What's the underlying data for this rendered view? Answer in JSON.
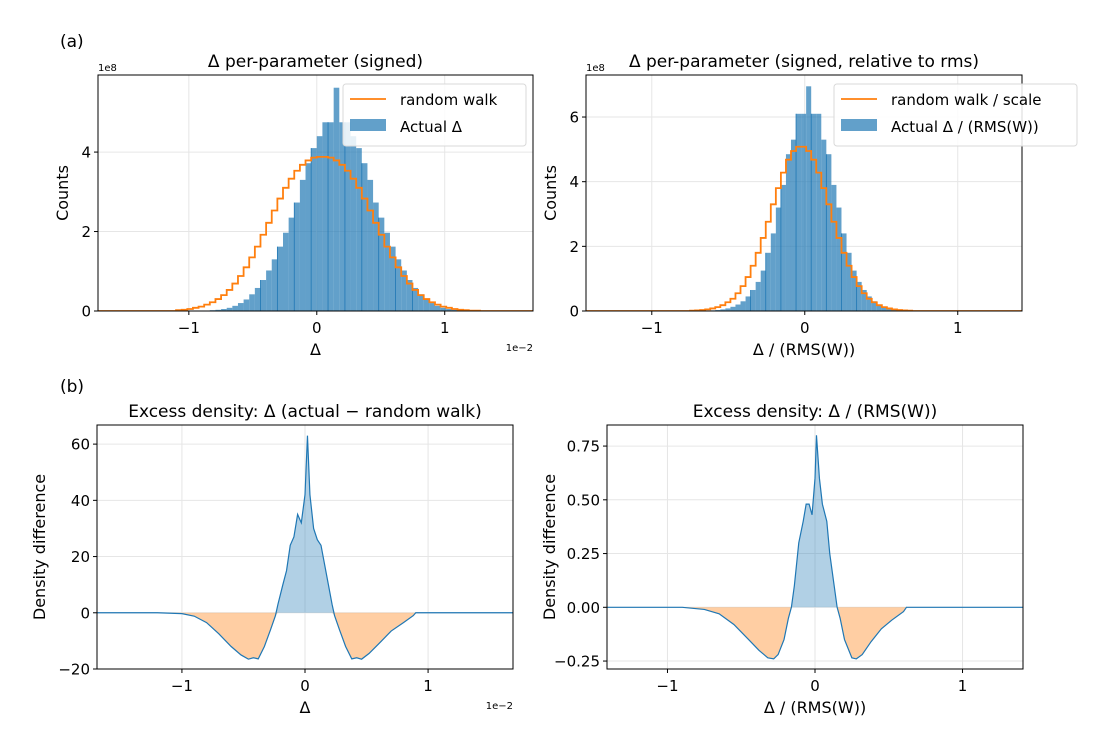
{
  "panel_labels": [
    "(a)",
    "(b)"
  ],
  "chart_data": [
    {
      "type": "bar",
      "id": "hist-delta",
      "title": "Δ per-parameter (signed)",
      "xlabel": "Δ",
      "ylabel": "Counts",
      "x_offset_label": "1e−2",
      "y_offset_label": "1e8",
      "xlim": [
        -1.71,
        1.69
      ],
      "ylim": [
        0,
        5.94
      ],
      "xticks": [
        -1,
        0,
        1
      ],
      "xtick_labels": [
        "−1",
        "0",
        "1"
      ],
      "yticks": [
        0,
        2,
        4
      ],
      "ytick_labels": [
        "0",
        "2",
        "4"
      ],
      "grid": true,
      "legend": {
        "placement": "top-right",
        "entries": [
          "random walk",
          "Actual Δ"
        ]
      },
      "bin_width": 0.044,
      "bin_start": -1.1,
      "series": [
        {
          "name": "Actual Δ",
          "kind": "bars",
          "color": "#1f77b4",
          "values": [
            0,
            0,
            0,
            0,
            0,
            0.01,
            0.02,
            0.03,
            0.05,
            0.08,
            0.13,
            0.2,
            0.29,
            0.42,
            0.58,
            0.78,
            1.02,
            1.3,
            1.62,
            1.97,
            2.35,
            2.73,
            3.3,
            3.72,
            4.1,
            4.4,
            4.75,
            4.75,
            5.62,
            4.75,
            4.75,
            4.4,
            4.1,
            3.72,
            3.3,
            2.73,
            2.35,
            1.97,
            1.62,
            1.3,
            1.02,
            0.78,
            0.58,
            0.42,
            0.29,
            0.2,
            0.13,
            0.08,
            0.05,
            0.03,
            0.02,
            0.01,
            0,
            0,
            0
          ]
        },
        {
          "name": "random walk",
          "kind": "step",
          "color": "#ff7f0e",
          "values": [
            0.02,
            0.03,
            0.05,
            0.08,
            0.11,
            0.16,
            0.22,
            0.3,
            0.4,
            0.53,
            0.69,
            0.88,
            1.1,
            1.35,
            1.62,
            1.92,
            2.22,
            2.53,
            2.83,
            3.1,
            3.33,
            3.53,
            3.68,
            3.79,
            3.86,
            3.88,
            3.88,
            3.86,
            3.79,
            3.68,
            3.53,
            3.33,
            3.1,
            2.83,
            2.53,
            2.22,
            1.92,
            1.62,
            1.35,
            1.1,
            0.88,
            0.69,
            0.53,
            0.4,
            0.3,
            0.22,
            0.16,
            0.11,
            0.08,
            0.05,
            0.03,
            0.02,
            0.01,
            0.01,
            0
          ]
        }
      ]
    },
    {
      "type": "bar",
      "id": "hist-delta-rel",
      "title": "Δ per-parameter (signed, relative to rms)",
      "xlabel": "Δ / (RMS(W))",
      "ylabel": "Counts",
      "y_offset_label": "1e8",
      "xlim": [
        -1.43,
        1.42
      ],
      "ylim": [
        0,
        7.3
      ],
      "xticks": [
        -1,
        0,
        1
      ],
      "xtick_labels": [
        "−1",
        "0",
        "1"
      ],
      "yticks": [
        0,
        2,
        4,
        6
      ],
      "ytick_labels": [
        "0",
        "2",
        "4",
        "6"
      ],
      "grid": true,
      "legend": {
        "placement": "top-right",
        "entries": [
          "random walk / scale",
          "Actual Δ / (RMS(W))"
        ]
      },
      "bin_width": 0.033,
      "bin_start": -0.75,
      "series": [
        {
          "name": "Actual Δ / (RMS(W))",
          "kind": "bars",
          "color": "#1f77b4",
          "values": [
            0,
            0,
            0,
            0.01,
            0.02,
            0.03,
            0.05,
            0.08,
            0.13,
            0.2,
            0.3,
            0.45,
            0.65,
            0.9,
            1.25,
            1.8,
            2.4,
            3.2,
            3.9,
            4.85,
            5.3,
            6.1,
            6.1,
            6.95,
            6.1,
            6.1,
            5.3,
            4.85,
            3.9,
            3.2,
            2.4,
            1.8,
            1.25,
            0.9,
            0.65,
            0.45,
            0.3,
            0.2,
            0.13,
            0.08,
            0.05,
            0.03,
            0.02,
            0.01,
            0,
            0
          ]
        },
        {
          "name": "random walk / scale",
          "kind": "step",
          "color": "#ff7f0e",
          "values": [
            0.01,
            0.02,
            0.03,
            0.05,
            0.08,
            0.12,
            0.18,
            0.27,
            0.38,
            0.55,
            0.77,
            1.05,
            1.4,
            1.8,
            2.26,
            2.76,
            3.3,
            3.8,
            4.28,
            4.68,
            4.95,
            5.08,
            5.08,
            4.95,
            4.68,
            4.28,
            3.8,
            3.3,
            2.76,
            2.26,
            1.8,
            1.4,
            1.05,
            0.77,
            0.55,
            0.38,
            0.27,
            0.18,
            0.12,
            0.08,
            0.05,
            0.03,
            0.02,
            0.01,
            0,
            0
          ]
        }
      ]
    },
    {
      "type": "area",
      "id": "excess-delta",
      "title": "Excess density: Δ (actual − random walk)",
      "xlabel": "Δ",
      "ylabel": "Density difference",
      "x_offset_label": "1e−2",
      "xlim": [
        -1.69,
        1.69
      ],
      "ylim": [
        -20,
        66.8
      ],
      "xticks": [
        -1,
        0,
        1
      ],
      "xtick_labels": [
        "−1",
        "0",
        "1"
      ],
      "yticks": [
        -20,
        0,
        20,
        40,
        60
      ],
      "ytick_labels": [
        "−20",
        "0",
        "20",
        "40",
        "60"
      ],
      "grid": true,
      "x": [
        -1.69,
        -1.2,
        -1.0,
        -0.9,
        -0.8,
        -0.7,
        -0.6,
        -0.52,
        -0.46,
        -0.42,
        -0.38,
        -0.33,
        -0.28,
        -0.24,
        -0.22,
        -0.18,
        -0.15,
        -0.12,
        -0.09,
        -0.06,
        -0.03,
        0.0,
        0.02,
        0.04,
        0.07,
        0.1,
        0.13,
        0.16,
        0.19,
        0.22,
        0.24,
        0.28,
        0.33,
        0.38,
        0.42,
        0.46,
        0.52,
        0.6,
        0.7,
        0.8,
        0.88,
        0.9,
        1.2,
        1.69
      ],
      "y": [
        0,
        0,
        -0.3,
        -1.2,
        -3.5,
        -7.5,
        -12,
        -15,
        -16.5,
        -16,
        -16.4,
        -12,
        -6,
        -1,
        3,
        10,
        15,
        24,
        27,
        35,
        32,
        42,
        63,
        42,
        30,
        26,
        24,
        17,
        10,
        3,
        -1,
        -6,
        -12,
        -16.4,
        -16,
        -16.5,
        -14.5,
        -11,
        -6.5,
        -3.5,
        -1,
        0,
        0,
        0
      ],
      "positive_color": "#1f77b4",
      "negative_color": "#ff7f0e"
    },
    {
      "type": "area",
      "id": "excess-delta-rel",
      "title": "Excess density: Δ / (RMS(W))",
      "xlabel": "Δ / (RMS(W))",
      "ylabel": "Density difference",
      "xlim": [
        -1.41,
        1.41
      ],
      "ylim": [
        -0.287,
        0.848
      ],
      "xticks": [
        -1,
        0,
        1
      ],
      "xtick_labels": [
        "−1",
        "0",
        "1"
      ],
      "yticks": [
        -0.25,
        0,
        0.25,
        0.5,
        0.75
      ],
      "ytick_labels": [
        "−0.25",
        "0.00",
        "0.25",
        "0.50",
        "0.75"
      ],
      "grid": true,
      "x": [
        -1.41,
        -0.9,
        -0.75,
        -0.65,
        -0.55,
        -0.45,
        -0.38,
        -0.32,
        -0.28,
        -0.25,
        -0.21,
        -0.18,
        -0.16,
        -0.14,
        -0.11,
        -0.08,
        -0.06,
        -0.04,
        -0.02,
        0.0,
        0.01,
        0.03,
        0.05,
        0.08,
        0.1,
        0.13,
        0.15,
        0.17,
        0.2,
        0.25,
        0.28,
        0.32,
        0.38,
        0.45,
        0.52,
        0.6,
        0.62,
        0.9,
        1.41
      ],
      "y": [
        0,
        0,
        -0.01,
        -0.03,
        -0.08,
        -0.15,
        -0.2,
        -0.235,
        -0.24,
        -0.22,
        -0.15,
        -0.05,
        0,
        0.1,
        0.3,
        0.4,
        0.48,
        0.48,
        0.43,
        0.6,
        0.8,
        0.6,
        0.48,
        0.4,
        0.25,
        0.1,
        0,
        -0.05,
        -0.15,
        -0.235,
        -0.24,
        -0.22,
        -0.16,
        -0.1,
        -0.06,
        -0.02,
        0,
        0,
        0
      ],
      "positive_color": "#1f77b4",
      "negative_color": "#ff7f0e"
    }
  ]
}
